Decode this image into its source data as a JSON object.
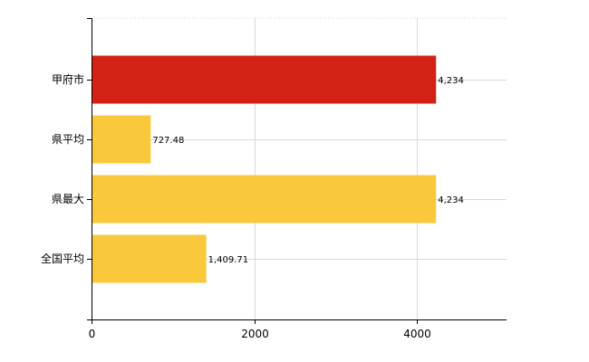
{
  "chart_data": {
    "type": "bar",
    "orientation": "horizontal",
    "categories": [
      "甲府市",
      "県平均",
      "県最大",
      "全国平均"
    ],
    "values": [
      4234,
      727.48,
      4234,
      1409.71
    ],
    "value_labels": [
      "4,234",
      "727.48",
      "4,234",
      "1,409.71"
    ],
    "bar_colors": [
      "#D42115",
      "#F9C93B",
      "#F9C93B",
      "#F9C93B"
    ],
    "x_ticks": [
      0,
      2000,
      4000
    ],
    "x_tick_labels": [
      "0",
      "2000",
      "4000"
    ],
    "xlim": [
      0,
      5100
    ],
    "grid": true,
    "title": "",
    "xlabel": "",
    "ylabel": ""
  }
}
